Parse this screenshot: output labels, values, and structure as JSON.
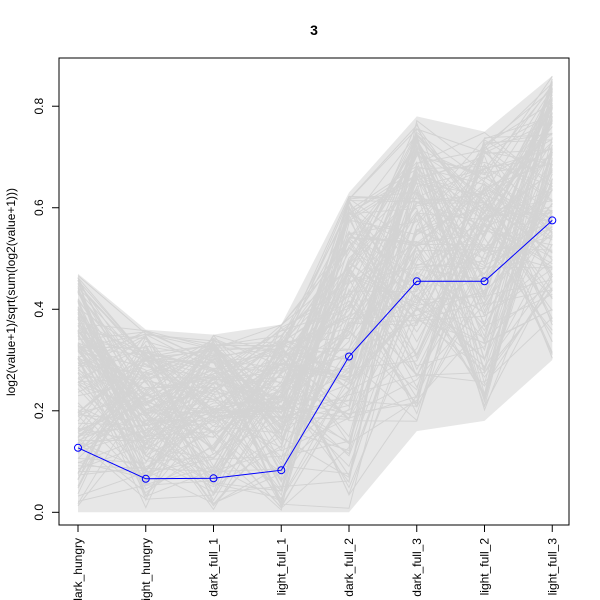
{
  "chart_data": {
    "type": "line",
    "title": "3",
    "xlabel": "",
    "ylabel": "log2(value+1)/sqrt(sum(log2(value+1)))",
    "categories": [
      "dark_hungry",
      "light_hungry",
      "dark_full_1",
      "light_full_1",
      "dark_full_2",
      "dark_full_3",
      "light_full_2",
      "light_full_3"
    ],
    "ylim": [
      -0.025,
      0.895
    ],
    "yticks": [
      0.0,
      0.2,
      0.4,
      0.6,
      0.8
    ],
    "ytick_labels": [
      "0.0",
      "0.2",
      "0.4",
      "0.6",
      "0.8"
    ],
    "grid": false,
    "legend": "none",
    "series": [
      {
        "values": [
          0.127,
          0.066,
          0.067,
          0.083,
          0.307,
          0.455,
          0.455,
          0.575
        ],
        "color": "#0000ff",
        "marker": "open-circle"
      }
    ],
    "background_band": {
      "color": "#d3d3d3",
      "min": [
        0.0,
        0.0,
        0.0,
        0.0,
        0.0,
        0.16,
        0.18,
        0.3
      ],
      "max": [
        0.47,
        0.36,
        0.35,
        0.37,
        0.63,
        0.78,
        0.75,
        0.86
      ]
    }
  }
}
